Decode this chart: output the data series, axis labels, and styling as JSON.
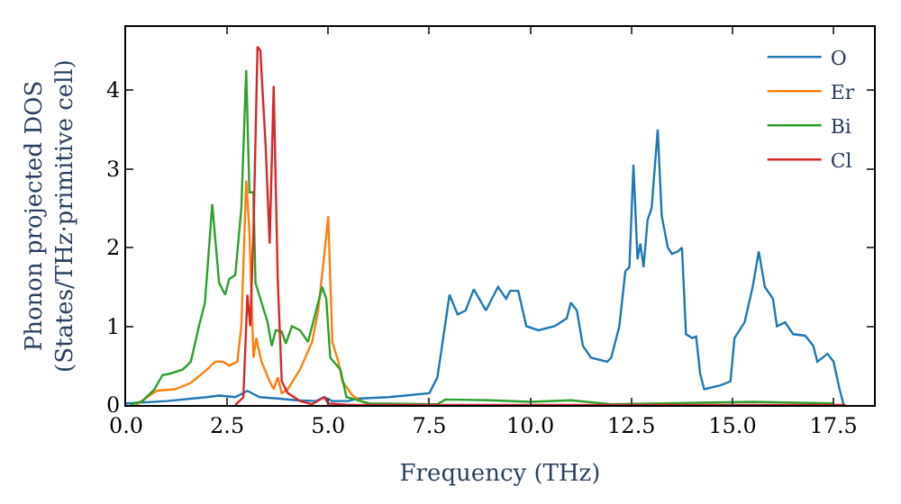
{
  "chart_data": {
    "type": "line",
    "xlabel": "Frequency (THz)",
    "ylabel": "Phonon projected DOS\n(States/THz·primitive cell)",
    "xlim": [
      0,
      18.5
    ],
    "ylim": [
      0,
      4.8
    ],
    "xticks": [
      {
        "value": 0,
        "label": "0.0"
      },
      {
        "value": 2.5,
        "label": "2.5"
      },
      {
        "value": 5,
        "label": "5.0"
      },
      {
        "value": 7.5,
        "label": "7.5"
      },
      {
        "value": 10,
        "label": "10.0"
      },
      {
        "value": 12.5,
        "label": "12.5"
      },
      {
        "value": 15,
        "label": "15.0"
      },
      {
        "value": 17.5,
        "label": "17.5"
      }
    ],
    "yticks": [
      0,
      1,
      2,
      3,
      4
    ],
    "legend": "top right",
    "marker": "none",
    "line_style": "solid",
    "series": [
      {
        "name": "O",
        "color": "#1f77b4",
        "x": [
          0,
          1,
          2,
          2.3,
          2.7,
          3.0,
          3.3,
          3.8,
          4.2,
          4.7,
          4.9,
          5.1,
          5.5,
          5.7,
          6.5,
          7.5,
          7.7,
          8.0,
          8.2,
          8.4,
          8.6,
          8.9,
          9.2,
          9.4,
          9.5,
          9.7,
          9.9,
          10.2,
          10.6,
          10.9,
          11.0,
          11.15,
          11.3,
          11.5,
          11.9,
          12.0,
          12.2,
          12.35,
          12.45,
          12.55,
          12.65,
          12.72,
          12.8,
          12.9,
          13.0,
          13.15,
          13.25,
          13.4,
          13.5,
          13.65,
          13.75,
          13.85,
          14.0,
          14.1,
          14.2,
          14.3,
          14.7,
          14.95,
          15.05,
          15.3,
          15.5,
          15.65,
          15.8,
          16.0,
          16.1,
          16.3,
          16.5,
          16.8,
          17.0,
          17.1,
          17.35,
          17.5,
          17.65,
          17.75
        ],
        "values": [
          0.02,
          0.05,
          0.1,
          0.12,
          0.1,
          0.18,
          0.1,
          0.08,
          0.06,
          0.05,
          0.1,
          0.05,
          0.05,
          0.08,
          0.1,
          0.15,
          0.35,
          1.4,
          1.15,
          1.2,
          1.47,
          1.2,
          1.5,
          1.35,
          1.45,
          1.45,
          1.0,
          0.95,
          1.0,
          1.1,
          1.3,
          1.2,
          0.75,
          0.6,
          0.55,
          0.6,
          1.0,
          1.7,
          1.75,
          3.05,
          1.85,
          2.05,
          1.75,
          2.35,
          2.5,
          3.5,
          2.4,
          2.0,
          1.92,
          1.95,
          2.0,
          0.9,
          0.85,
          0.87,
          0.4,
          0.2,
          0.25,
          0.3,
          0.85,
          1.05,
          1.5,
          1.95,
          1.5,
          1.35,
          1.0,
          1.05,
          0.9,
          0.88,
          0.75,
          0.55,
          0.65,
          0.55,
          0.2,
          0.0
        ]
      },
      {
        "name": "Er",
        "color": "#ff7f0e",
        "x": [
          0.25,
          0.75,
          1.2,
          1.6,
          2.0,
          2.2,
          2.4,
          2.55,
          2.75,
          2.85,
          2.97,
          3.05,
          3.15,
          3.22,
          3.35,
          3.55,
          3.65,
          3.75,
          3.85,
          4.0,
          4.3,
          4.6,
          4.75,
          4.9,
          5.0,
          5.1,
          5.25,
          5.35,
          5.6,
          5.8,
          6.0
        ],
        "values": [
          0,
          0.18,
          0.2,
          0.28,
          0.45,
          0.55,
          0.55,
          0.5,
          0.55,
          1.0,
          2.85,
          2.2,
          0.6,
          0.85,
          0.55,
          0.3,
          0.2,
          0.35,
          0.15,
          0.2,
          0.45,
          0.8,
          1.2,
          1.9,
          2.4,
          0.8,
          0.55,
          0.3,
          0.12,
          0.05,
          0.02
        ]
      },
      {
        "name": "Bi",
        "color": "#2ca02c",
        "x": [
          0.1,
          0.4,
          0.7,
          0.9,
          1.1,
          1.4,
          1.6,
          1.8,
          1.95,
          2.13,
          2.3,
          2.45,
          2.55,
          2.7,
          2.85,
          2.97,
          3.05,
          3.15,
          3.2,
          3.35,
          3.5,
          3.6,
          3.7,
          3.85,
          3.95,
          4.1,
          4.3,
          4.5,
          4.65,
          4.85,
          4.95,
          5.05,
          5.3,
          5.45,
          5.8,
          6.0,
          7.7,
          7.9,
          9,
          10,
          11,
          12,
          15.5,
          17.5
        ],
        "values": [
          0,
          0.05,
          0.2,
          0.38,
          0.4,
          0.45,
          0.55,
          1.0,
          1.3,
          2.55,
          1.55,
          1.4,
          1.6,
          1.65,
          2.5,
          4.25,
          2.7,
          2.7,
          1.55,
          1.3,
          1.05,
          0.75,
          0.95,
          0.93,
          0.78,
          1.0,
          0.95,
          0.8,
          1.1,
          1.5,
          1.35,
          0.6,
          0.45,
          0.1,
          0.05,
          0.02,
          0.01,
          0.07,
          0.06,
          0.04,
          0.06,
          0.01,
          0.04,
          0.02
        ]
      },
      {
        "name": "Cl",
        "color": "#d62728",
        "x": [
          2.7,
          2.9,
          3.0,
          3.07,
          3.15,
          3.25,
          3.32,
          3.45,
          3.55,
          3.65,
          3.75,
          3.85,
          4.0,
          4.3,
          4.6,
          4.9,
          5.0,
          5.5,
          17.8
        ],
        "values": [
          0,
          0.1,
          1.4,
          1.0,
          2.2,
          4.55,
          4.5,
          3.3,
          2.05,
          4.05,
          1.6,
          0.3,
          0.15,
          0.05,
          0.01,
          0.1,
          0.02,
          0,
          0
        ]
      }
    ]
  }
}
